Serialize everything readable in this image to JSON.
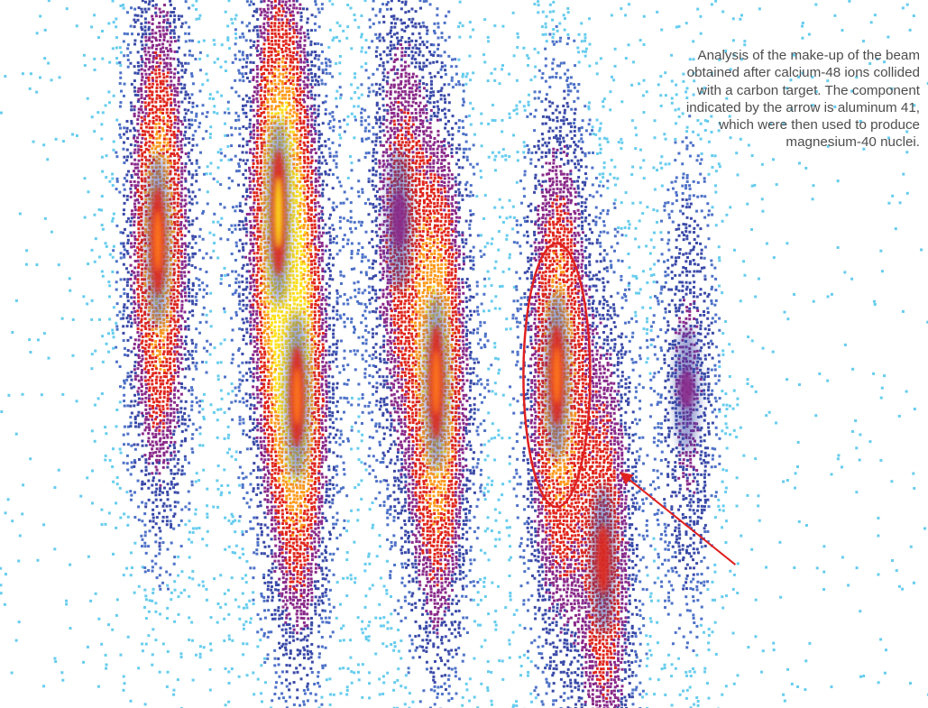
{
  "caption": "Analysis of the make-up of the beam obtained after calcium-48 ions collided with a carbon target. The component indicated by the arrow is aluminum 41, which were then used to produce magnesium-40 nuclei.",
  "colors": {
    "low": "#66ccee",
    "mid": "#3a4aa8",
    "high": "#e0261c",
    "peak": "#ffe11a",
    "annotation": "#e02020"
  },
  "chart_data": {
    "type": "heatmap",
    "title": "",
    "xlabel": "",
    "ylabel": "",
    "axes_visible": false,
    "grid": false,
    "legend": "none",
    "xlim": [
      0,
      1
    ],
    "ylim": [
      0,
      1
    ],
    "clusters": [
      {
        "x": 0.17,
        "y": 0.66,
        "intensity": 0.85
      },
      {
        "x": 0.3,
        "y": 0.7,
        "intensity": 1.0
      },
      {
        "x": 0.32,
        "y": 0.44,
        "intensity": 0.8
      },
      {
        "x": 0.43,
        "y": 0.69,
        "intensity": 0.45
      },
      {
        "x": 0.47,
        "y": 0.46,
        "intensity": 0.9
      },
      {
        "x": 0.6,
        "y": 0.47,
        "intensity": 0.8
      },
      {
        "x": 0.65,
        "y": 0.21,
        "intensity": 0.55
      },
      {
        "x": 0.74,
        "y": 0.45,
        "intensity": 0.3
      }
    ],
    "annotations": [
      {
        "type": "ellipse",
        "target_cluster": 5
      },
      {
        "type": "arrow",
        "target_cluster": 5
      }
    ]
  }
}
